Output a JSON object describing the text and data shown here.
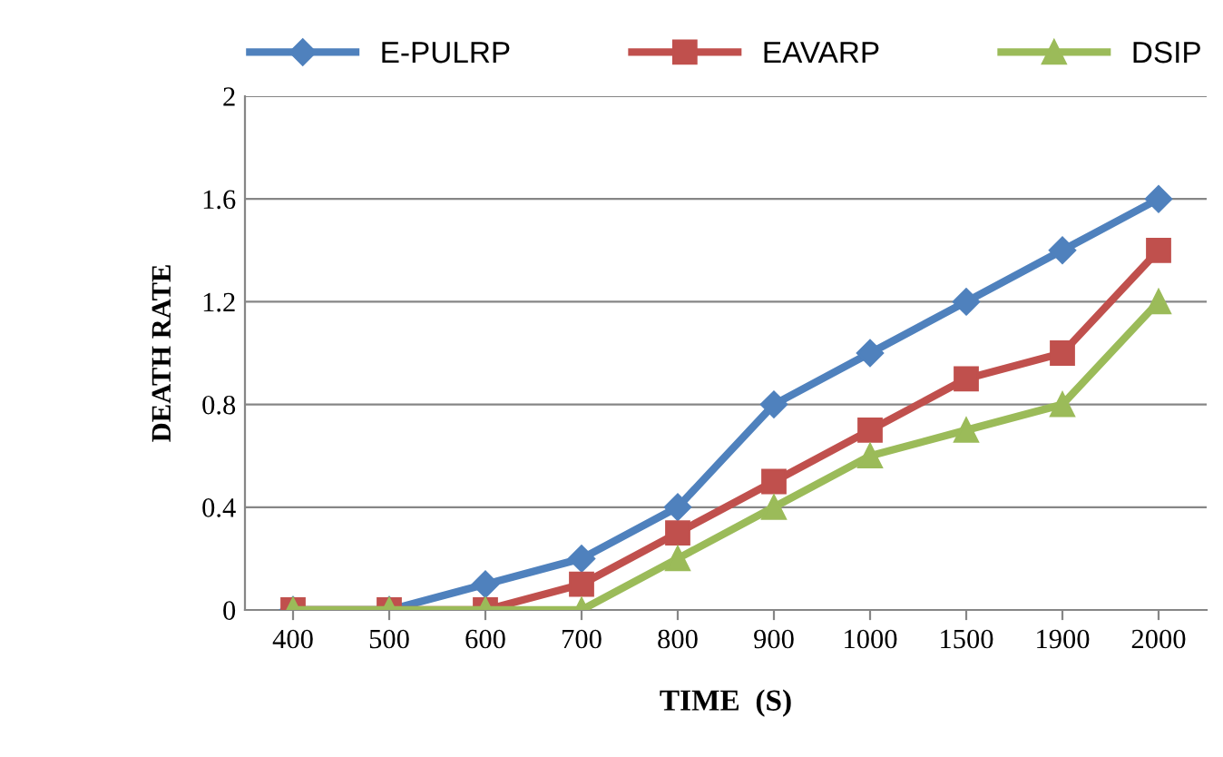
{
  "chart_data": {
    "type": "line",
    "xlabel": "TIME  (S)",
    "ylabel": "DEATH RATE",
    "categories": [
      "400",
      "500",
      "600",
      "700",
      "800",
      "900",
      "1000",
      "1500",
      "1900",
      "2000"
    ],
    "series": [
      {
        "name": "E-PULRP",
        "color": "#4f81bd",
        "marker": "diamond",
        "values": [
          0,
          0,
          0.1,
          0.2,
          0.4,
          0.8,
          1.0,
          1.2,
          1.4,
          1.6
        ]
      },
      {
        "name": "EAVARP",
        "color": "#c0504d",
        "marker": "square",
        "values": [
          0,
          0,
          0,
          0.1,
          0.3,
          0.5,
          0.7,
          0.9,
          1.0,
          1.4
        ]
      },
      {
        "name": "DSIP",
        "color": "#9bbb59",
        "marker": "triangle",
        "values": [
          0,
          0,
          0,
          0,
          0.2,
          0.4,
          0.6,
          0.7,
          0.8,
          1.2
        ]
      }
    ],
    "ylim": [
      0,
      2
    ],
    "yticks": [
      0,
      0.4,
      0.8,
      1.2,
      1.6,
      2
    ],
    "grid": "y",
    "legend": "top",
    "line_style": "solid"
  }
}
